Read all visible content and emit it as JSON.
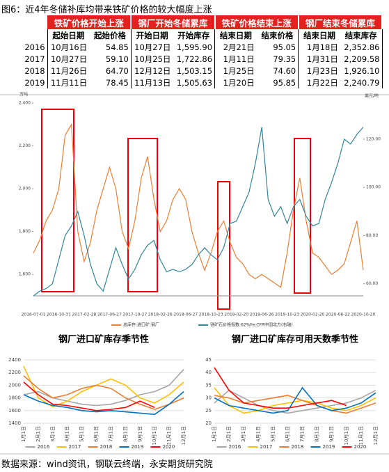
{
  "title": "图6：近4年冬储补库均带来铁矿价格的较大幅度上涨",
  "table": {
    "groups": [
      "铁矿价格开始上涨",
      "钢厂开始冬储累库",
      "铁矿价格结束上涨",
      "钢厂结束冬储累库"
    ],
    "subheaders": [
      "起始日期",
      "起始价格",
      "开始日期",
      "开始库存",
      "结束日期",
      "结束价格",
      "结束日期",
      "结束库存"
    ],
    "rows": [
      [
        "2016",
        "10月16日",
        "54.85",
        "10月27日",
        "1,595.90",
        "2月21日",
        "95.05",
        "1月18日",
        "2,352.86"
      ],
      [
        "2017",
        "10月27日",
        "59.10",
        "10月25日",
        "1,722.86",
        "1月11日",
        "79.35",
        "1月31日",
        "2,209.58"
      ],
      [
        "2018",
        "11月26日",
        "64.70",
        "12月12日",
        "1,503.15",
        "1月25日",
        "74.60",
        "1月23日",
        "1,926.10"
      ],
      [
        "2019",
        "11月11日",
        "78.45",
        "11月13日",
        "1,505.63",
        "1月20日",
        "95.85",
        "1月22日",
        "2,240.79"
      ]
    ]
  },
  "chart_data": [
    {
      "type": "line",
      "y_label": "万吨",
      "y2_label": "美元/吨",
      "categories": [
        "2016-07-01",
        null,
        null,
        null,
        "2016-10-31",
        null,
        null,
        null,
        "2017-02-28",
        null,
        null,
        null,
        "2017-06-27",
        null,
        null,
        null,
        "2017-10-27",
        null,
        null,
        null,
        "2018-02-26",
        null,
        null,
        null,
        "2018-06-27",
        null,
        null,
        null,
        "2018-10-23",
        null,
        null,
        null,
        "2019-02-20",
        null,
        null,
        null,
        "2019-06-26",
        null,
        null,
        null,
        "2019-10-23",
        null,
        null,
        null,
        "2020-02-20",
        null,
        null,
        null,
        "2020-06-22",
        null,
        null,
        null,
        "2020-10-20"
      ],
      "ylim": [
        1500,
        2400
      ],
      "yticks": [
        {
          "value": 1600,
          "label": "1,600"
        },
        {
          "value": 1800,
          "label": "1,800"
        },
        {
          "value": 2000,
          "label": "2,000"
        },
        {
          "value": 2200,
          "label": "2,200"
        },
        {
          "value": 2400,
          "label": "2,400"
        }
      ],
      "y2lim": [
        55,
        135
      ],
      "y2ticks": [
        {
          "value": 60,
          "label": "60.00"
        },
        {
          "value": 80,
          "label": "80.00"
        },
        {
          "value": 100,
          "label": "100.00"
        },
        {
          "value": 120,
          "label": "120.00"
        }
      ],
      "grid": false,
      "series": [
        {
          "name": "总库存:进口矿:钢厂",
          "color": "#ed7d31",
          "values": [
            1700,
            1760,
            1850,
            1900,
            2000,
            2250,
            2300,
            1800,
            1660,
            1750,
            1900,
            2000,
            2100,
            2000,
            1800,
            1720,
            1850,
            2050,
            2150,
            1950,
            1800,
            1850,
            1950,
            2000,
            1950,
            1800,
            1700,
            1620,
            1700,
            1800,
            1850,
            1750,
            1680,
            1650,
            1600,
            1580,
            1600,
            1580,
            1560,
            1540,
            1700,
            1900,
            2050,
            1850,
            1700,
            1680,
            1640,
            1600,
            1620,
            1650,
            1750,
            1850,
            1620
          ]
        },
        {
          "name": "铁矿石价格指数:62%Fe:CFR中国北方(右轴)",
          "color": "#31849b",
          "axis": "y2",
          "values": [
            55,
            57,
            58,
            60,
            70,
            80,
            84,
            90,
            80,
            68,
            60,
            57,
            66,
            75,
            68,
            62,
            66,
            72,
            76,
            78,
            70,
            65,
            66,
            65,
            66,
            68,
            72,
            75,
            72,
            70,
            75,
            85,
            86,
            92,
            98,
            110,
            125,
            95,
            88,
            92,
            85,
            92,
            95,
            88,
            84,
            85,
            95,
            102,
            110,
            120,
            118,
            122,
            125
          ]
        }
      ]
    },
    {
      "type": "line",
      "title": "钢厂进口矿库存季节性",
      "categories": [
        "1月1日",
        "2月1日",
        "3月1日",
        "4月1日",
        "5月1日",
        "6月1日",
        "7月1日",
        "8月1日",
        "9月1日",
        "10月1日",
        "11月1日",
        "12月1日"
      ],
      "ylim": [
        1400,
        2400
      ],
      "yticks": [
        1400,
        1600,
        1800,
        2000,
        2200,
        2400
      ],
      "grid": true,
      "series": [
        {
          "name": "2016",
          "color": "#a6a6a6",
          "values": [
            1850,
            1900,
            1800,
            1750,
            1700,
            1680,
            1700,
            1760,
            1850,
            1900,
            2000,
            2250
          ]
        },
        {
          "name": "2017",
          "color": "#ffc000",
          "values": [
            2300,
            1800,
            1660,
            1750,
            1900,
            2000,
            2100,
            2000,
            1800,
            1720,
            1850,
            2050
          ]
        },
        {
          "name": "2018",
          "color": "#ed7d31",
          "values": [
            2150,
            1950,
            1800,
            1850,
            1950,
            2000,
            1950,
            1800,
            1700,
            1620,
            1700,
            1800
          ]
        },
        {
          "name": "2019",
          "color": "#0070c0",
          "values": [
            1850,
            1750,
            1680,
            1650,
            1600,
            1580,
            1600,
            1580,
            1560,
            1540,
            1700,
            1900
          ]
        },
        {
          "name": "2020",
          "color": "#ff0000",
          "values": [
            2050,
            1850,
            1700,
            1680,
            1640,
            1600,
            1620,
            1650,
            1750,
            1650,
            null,
            null
          ]
        }
      ]
    },
    {
      "type": "line",
      "title": "钢厂进口矿库存可用天数季节性",
      "categories": [
        "1月1日",
        "2月1日",
        "3月1日",
        "4月1日",
        "5月1日",
        "6月1日",
        "7月1日",
        "8月1日",
        "9月1日",
        "10月1日",
        "11月1日",
        "12月1日"
      ],
      "ylim": [
        20,
        45
      ],
      "yticks": [
        20,
        25,
        30,
        35,
        40,
        45
      ],
      "grid": true,
      "series": [
        {
          "name": "2016",
          "color": "#a6a6a6",
          "values": [
            28,
            33,
            30,
            27,
            25,
            24,
            25,
            26,
            27,
            28,
            30,
            33
          ]
        },
        {
          "name": "2017",
          "color": "#ffc000",
          "values": [
            34,
            27,
            24,
            25,
            27,
            28,
            29,
            28,
            26,
            25,
            27,
            30
          ]
        },
        {
          "name": "2018",
          "color": "#ed7d31",
          "values": [
            31,
            30,
            28,
            29,
            30,
            31,
            29,
            27,
            25,
            24,
            26,
            28
          ]
        },
        {
          "name": "2019",
          "color": "#0070c0",
          "values": [
            30,
            27,
            26,
            25,
            24,
            25,
            34,
            27,
            25,
            26,
            28,
            32
          ]
        },
        {
          "name": "2020",
          "color": "#ff0000",
          "values": [
            42,
            33,
            28,
            27,
            26,
            26,
            27,
            28,
            29,
            27,
            null,
            null
          ]
        }
      ]
    }
  ],
  "source": "数据来源：wind资讯，钢联云终端，永安期货研究院"
}
